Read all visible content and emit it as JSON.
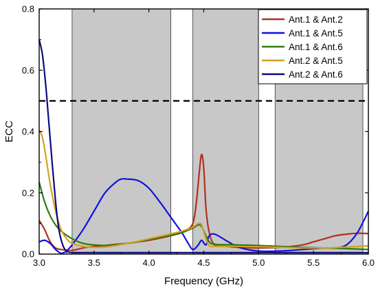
{
  "chart_data": {
    "type": "line",
    "title": "",
    "xlabel": "Frequency (GHz)",
    "ylabel": "ECC",
    "xlim": [
      3.0,
      6.0
    ],
    "ylim": [
      0.0,
      0.8
    ],
    "x_ticks": [
      3.0,
      3.5,
      4.0,
      4.5,
      5.0,
      5.5,
      6.0
    ],
    "y_ticks": [
      0.0,
      0.2,
      0.4,
      0.6,
      0.8
    ],
    "x_tick_labels": [
      "3.0",
      "3.5",
      "4.0",
      "4.5",
      "5.0",
      "5.5",
      "6.0"
    ],
    "y_tick_labels": [
      "0.0",
      "0.2",
      "0.4",
      "0.6",
      "0.8"
    ],
    "grid": false,
    "legend_position": "top-right",
    "threshold_line": {
      "y": 0.5,
      "style": "dashed",
      "color": "#000000"
    },
    "shaded_bands": [
      {
        "x0": 3.3,
        "x1": 4.2,
        "color": "#c8c8c8"
      },
      {
        "x0": 4.4,
        "x1": 5.0,
        "color": "#c8c8c8"
      },
      {
        "x0": 5.15,
        "x1": 5.95,
        "color": "#c8c8c8"
      }
    ],
    "series": [
      {
        "name": "Ant.1 & Ant.2",
        "color": "#b03020",
        "points": [
          [
            3.0,
            0.11
          ],
          [
            3.05,
            0.08
          ],
          [
            3.1,
            0.04
          ],
          [
            3.15,
            0.02
          ],
          [
            3.2,
            0.015
          ],
          [
            3.3,
            0.012
          ],
          [
            3.4,
            0.02
          ],
          [
            3.5,
            0.025
          ],
          [
            3.6,
            0.028
          ],
          [
            3.7,
            0.032
          ],
          [
            3.8,
            0.035
          ],
          [
            3.9,
            0.04
          ],
          [
            4.0,
            0.045
          ],
          [
            4.1,
            0.052
          ],
          [
            4.2,
            0.06
          ],
          [
            4.3,
            0.07
          ],
          [
            4.35,
            0.08
          ],
          [
            4.4,
            0.1
          ],
          [
            4.43,
            0.16
          ],
          [
            4.46,
            0.27
          ],
          [
            4.48,
            0.325
          ],
          [
            4.5,
            0.28
          ],
          [
            4.52,
            0.15
          ],
          [
            4.55,
            0.07
          ],
          [
            4.6,
            0.03
          ],
          [
            4.7,
            0.025
          ],
          [
            4.8,
            0.022
          ],
          [
            5.0,
            0.02
          ],
          [
            5.2,
            0.022
          ],
          [
            5.4,
            0.03
          ],
          [
            5.5,
            0.04
          ],
          [
            5.6,
            0.05
          ],
          [
            5.7,
            0.06
          ],
          [
            5.8,
            0.065
          ],
          [
            5.9,
            0.068
          ],
          [
            6.0,
            0.067
          ]
        ]
      },
      {
        "name": "Ant.1 & Ant.5",
        "color": "#1010e0",
        "points": [
          [
            3.0,
            0.04
          ],
          [
            3.05,
            0.045
          ],
          [
            3.1,
            0.035
          ],
          [
            3.15,
            0.015
          ],
          [
            3.2,
            0.003
          ],
          [
            3.25,
            0.01
          ],
          [
            3.3,
            0.03
          ],
          [
            3.4,
            0.08
          ],
          [
            3.5,
            0.14
          ],
          [
            3.6,
            0.2
          ],
          [
            3.7,
            0.235
          ],
          [
            3.75,
            0.245
          ],
          [
            3.8,
            0.245
          ],
          [
            3.9,
            0.24
          ],
          [
            4.0,
            0.215
          ],
          [
            4.1,
            0.17
          ],
          [
            4.2,
            0.12
          ],
          [
            4.3,
            0.07
          ],
          [
            4.35,
            0.04
          ],
          [
            4.4,
            0.015
          ],
          [
            4.45,
            0.03
          ],
          [
            4.48,
            0.045
          ],
          [
            4.52,
            0.03
          ],
          [
            4.55,
            0.06
          ],
          [
            4.6,
            0.065
          ],
          [
            4.7,
            0.045
          ],
          [
            4.8,
            0.025
          ],
          [
            4.9,
            0.015
          ],
          [
            5.0,
            0.01
          ],
          [
            5.2,
            0.01
          ],
          [
            5.4,
            0.015
          ],
          [
            5.6,
            0.02
          ],
          [
            5.7,
            0.02
          ],
          [
            5.8,
            0.03
          ],
          [
            5.9,
            0.07
          ],
          [
            6.0,
            0.14
          ]
        ]
      },
      {
        "name": "Ant.1 & Ant.6",
        "color": "#2e7a10",
        "points": [
          [
            3.0,
            0.235
          ],
          [
            3.05,
            0.17
          ],
          [
            3.1,
            0.125
          ],
          [
            3.15,
            0.095
          ],
          [
            3.2,
            0.075
          ],
          [
            3.3,
            0.05
          ],
          [
            3.4,
            0.035
          ],
          [
            3.5,
            0.03
          ],
          [
            3.6,
            0.028
          ],
          [
            3.7,
            0.03
          ],
          [
            3.8,
            0.035
          ],
          [
            3.9,
            0.04
          ],
          [
            4.0,
            0.048
          ],
          [
            4.1,
            0.055
          ],
          [
            4.2,
            0.062
          ],
          [
            4.3,
            0.07
          ],
          [
            4.4,
            0.085
          ],
          [
            4.45,
            0.095
          ],
          [
            4.48,
            0.09
          ],
          [
            4.52,
            0.06
          ],
          [
            4.55,
            0.04
          ],
          [
            4.6,
            0.032
          ],
          [
            4.8,
            0.03
          ],
          [
            5.0,
            0.028
          ],
          [
            5.2,
            0.025
          ],
          [
            5.4,
            0.022
          ],
          [
            5.6,
            0.02
          ],
          [
            5.8,
            0.018
          ],
          [
            6.0,
            0.015
          ]
        ]
      },
      {
        "name": "Ant.2 & Ant.5",
        "color": "#d4a020",
        "points": [
          [
            3.0,
            0.405
          ],
          [
            3.03,
            0.38
          ],
          [
            3.06,
            0.32
          ],
          [
            3.1,
            0.23
          ],
          [
            3.15,
            0.14
          ],
          [
            3.2,
            0.08
          ],
          [
            3.25,
            0.05
          ],
          [
            3.3,
            0.035
          ],
          [
            3.4,
            0.025
          ],
          [
            3.5,
            0.022
          ],
          [
            3.6,
            0.023
          ],
          [
            3.7,
            0.028
          ],
          [
            3.8,
            0.035
          ],
          [
            3.9,
            0.042
          ],
          [
            4.0,
            0.05
          ],
          [
            4.1,
            0.058
          ],
          [
            4.2,
            0.066
          ],
          [
            4.3,
            0.075
          ],
          [
            4.4,
            0.088
          ],
          [
            4.45,
            0.1
          ],
          [
            4.48,
            0.095
          ],
          [
            4.52,
            0.05
          ],
          [
            4.55,
            0.028
          ],
          [
            4.6,
            0.025
          ],
          [
            4.8,
            0.025
          ],
          [
            5.0,
            0.024
          ],
          [
            5.2,
            0.022
          ],
          [
            5.4,
            0.02
          ],
          [
            5.6,
            0.02
          ],
          [
            5.8,
            0.023
          ],
          [
            6.0,
            0.027
          ]
        ]
      },
      {
        "name": "Ant.2 & Ant.6",
        "color": "#0a0a80",
        "points": [
          [
            3.0,
            0.7
          ],
          [
            3.03,
            0.65
          ],
          [
            3.06,
            0.55
          ],
          [
            3.09,
            0.42
          ],
          [
            3.12,
            0.29
          ],
          [
            3.15,
            0.17
          ],
          [
            3.18,
            0.08
          ],
          [
            3.22,
            0.025
          ],
          [
            3.26,
            0.008
          ],
          [
            3.3,
            0.005
          ],
          [
            3.4,
            0.005
          ],
          [
            3.6,
            0.005
          ],
          [
            3.8,
            0.005
          ],
          [
            4.0,
            0.005
          ],
          [
            4.2,
            0.005
          ],
          [
            4.4,
            0.005
          ],
          [
            4.6,
            0.005
          ],
          [
            4.8,
            0.005
          ],
          [
            5.0,
            0.005
          ],
          [
            5.2,
            0.005
          ],
          [
            5.4,
            0.005
          ],
          [
            5.6,
            0.005
          ],
          [
            5.8,
            0.005
          ],
          [
            6.0,
            0.005
          ]
        ]
      }
    ]
  }
}
